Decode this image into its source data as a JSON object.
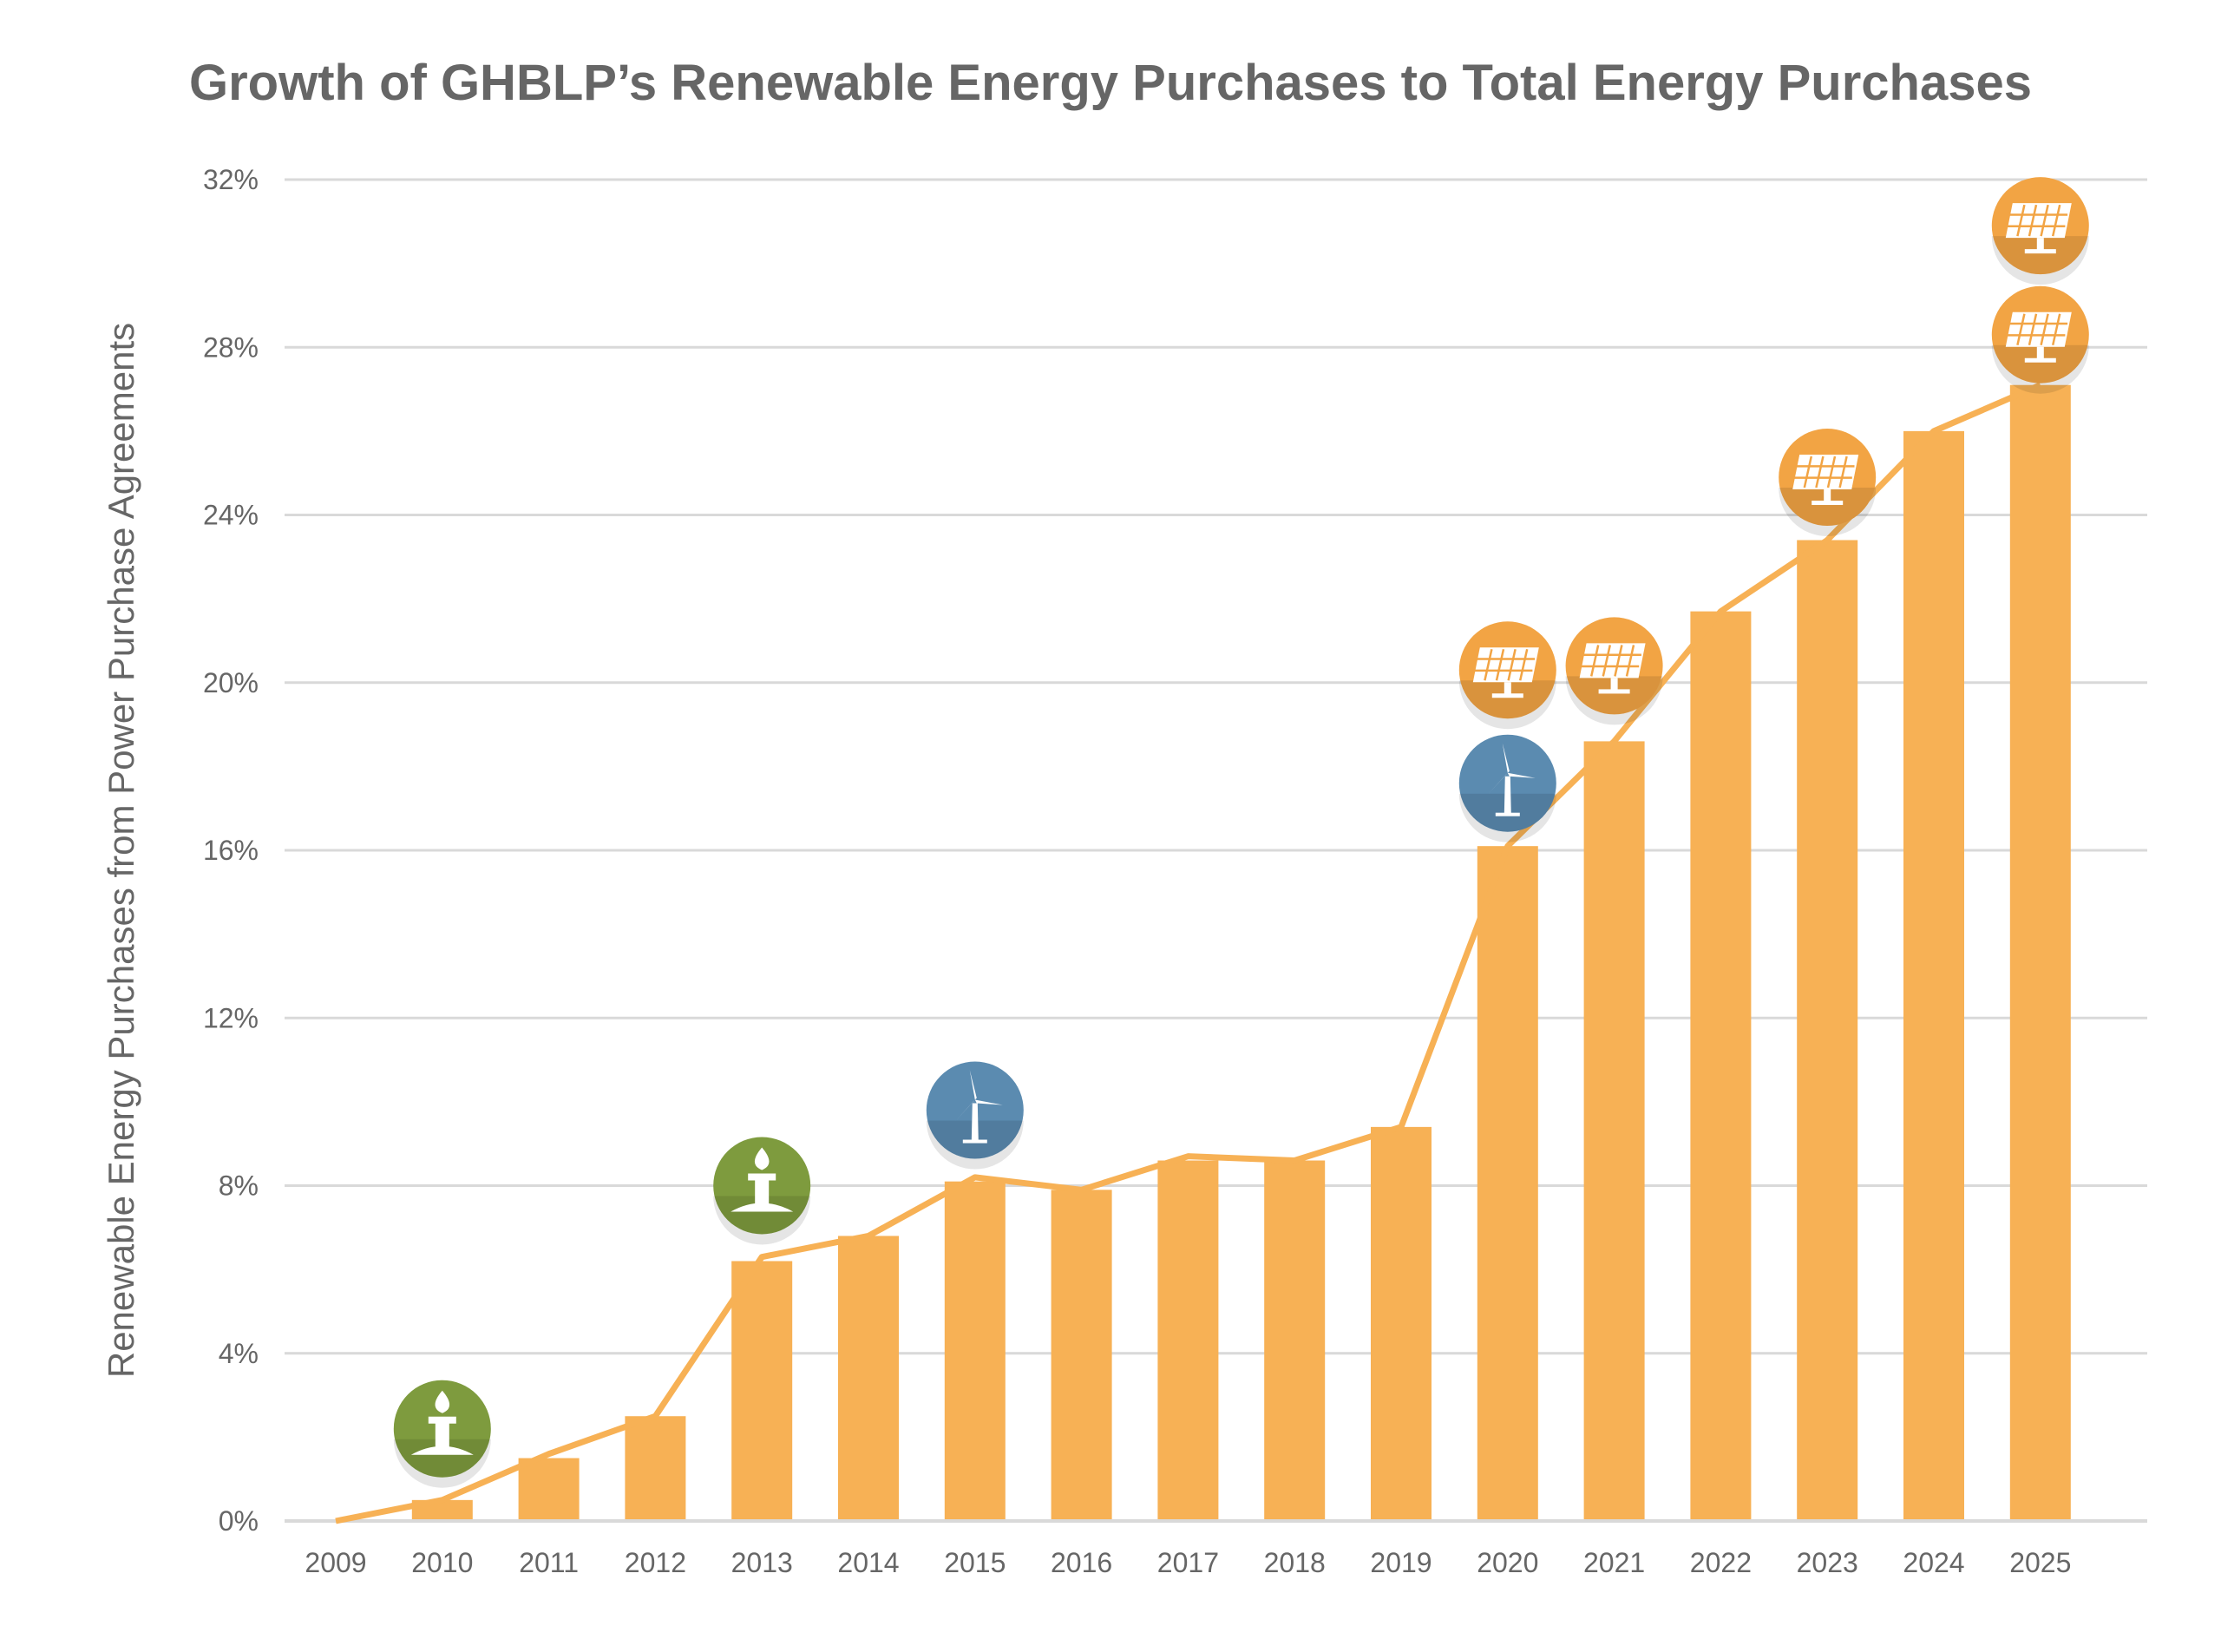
{
  "chart_data": {
    "type": "bar",
    "title": "Growth of GHBLP’s Renewable Energy Purchases to Total Energy Purchases",
    "xlabel": "",
    "ylabel": "Renewable Energy Purchases from Power Purchase Agreements",
    "categories": [
      "2009",
      "2010",
      "2011",
      "2012",
      "2013",
      "2014",
      "2015",
      "2016",
      "2017",
      "2018",
      "2019",
      "2020",
      "2021",
      "2022",
      "2023",
      "2024",
      "2025"
    ],
    "series": [
      {
        "type": "bar",
        "values": [
          0,
          0.5,
          1.5,
          2.5,
          6.2,
          6.8,
          8.1,
          7.9,
          8.6,
          8.6,
          9.4,
          16.1,
          18.6,
          21.7,
          23.4,
          26.0,
          27.1
        ]
      },
      {
        "type": "line",
        "values": [
          0,
          0.5,
          1.6,
          2.5,
          6.3,
          6.8,
          8.2,
          7.9,
          8.7,
          8.6,
          9.4,
          16.1,
          18.6,
          21.7,
          23.4,
          26.0,
          27.1
        ]
      }
    ],
    "ylim": [
      0,
      32
    ],
    "yticks": [
      "0%",
      "4%",
      "8%",
      "12%",
      "16%",
      "20%",
      "24%",
      "28%",
      "32%"
    ],
    "ytick_values": [
      0,
      4,
      8,
      12,
      16,
      20,
      24,
      28,
      32
    ],
    "grid": "horizontal",
    "legend": "none",
    "colors": {
      "bar": "#F7B155",
      "line": "#F7B155",
      "grid": "#D9D9D9",
      "text": "#666666",
      "biomass": "#7E9B3E",
      "wind": "#5B8BB0",
      "solar": "#F2A444"
    },
    "annotations": [
      {
        "icon": "biomass-flame-icon",
        "year": "2010",
        "y": 2.2
      },
      {
        "icon": "biomass-flame-icon",
        "year": "2013",
        "y": 8.0
      },
      {
        "icon": "wind-turbine-icon",
        "year": "2015",
        "y": 9.8
      },
      {
        "icon": "wind-turbine-icon",
        "year": "2020",
        "y": 17.6
      },
      {
        "icon": "solar-panel-icon",
        "year": "2020",
        "y": 20.3
      },
      {
        "icon": "solar-panel-icon",
        "year": "2021",
        "y": 20.4
      },
      {
        "icon": "solar-panel-icon",
        "year": "2023",
        "y": 24.9
      },
      {
        "icon": "solar-panel-icon",
        "year": "2025",
        "y": 28.3
      },
      {
        "icon": "solar-panel-icon",
        "year": "2025",
        "y": 30.9
      }
    ]
  }
}
